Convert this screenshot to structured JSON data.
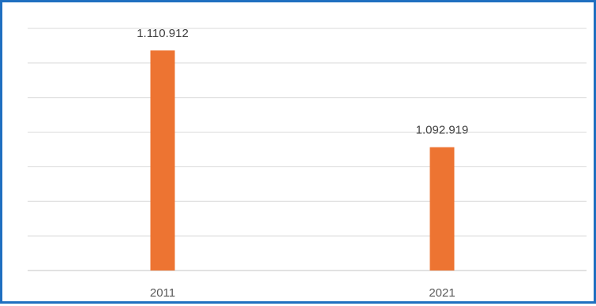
{
  "chart_data": {
    "type": "bar",
    "categories": [
      "2011",
      "2021"
    ],
    "values": [
      1110912,
      1092919
    ],
    "data_labels": [
      "1.110.912",
      "1.092.919"
    ],
    "title": "",
    "xlabel": "",
    "ylabel": "",
    "ylim": [
      1070000,
      1115000
    ],
    "grid": true,
    "legend": "none",
    "colors": {
      "bar": "#ed7432",
      "grid": "#d9d9d9",
      "frame": "#1f6fc0"
    }
  }
}
